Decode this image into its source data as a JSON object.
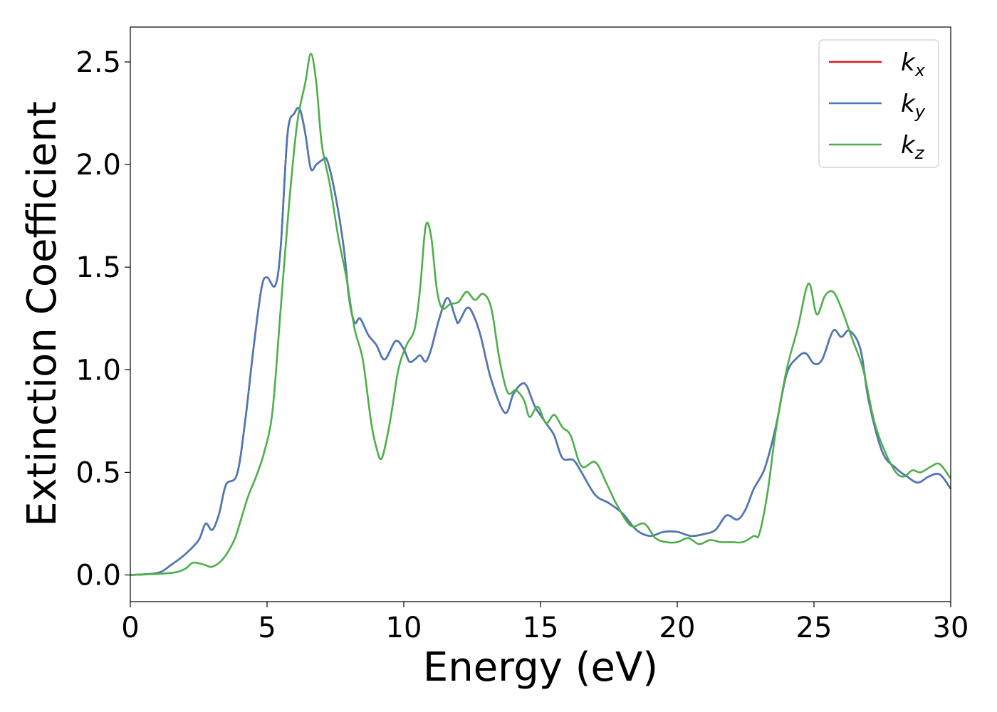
{
  "chart_data": {
    "type": "line",
    "xlabel": "Energy (eV)",
    "ylabel": "Extinction Coefficient",
    "xlim": [
      0,
      30
    ],
    "ylim": [
      -0.13,
      2.67
    ],
    "xticks": [
      "0",
      "5",
      "10",
      "15",
      "20",
      "25",
      "30"
    ],
    "yticks": [
      "0.0",
      "0.5",
      "1.0",
      "1.5",
      "2.0",
      "2.5"
    ],
    "grid": false,
    "legend_position": "top-right",
    "series": [
      {
        "name": "k_x",
        "legend_base": "k",
        "legend_sub": "x",
        "color": "#e41a1c",
        "points": [
          [
            0,
            0
          ],
          [
            1,
            0.01
          ],
          [
            1.5,
            0.05
          ],
          [
            2,
            0.1
          ],
          [
            2.5,
            0.17
          ],
          [
            2.75,
            0.25
          ],
          [
            3,
            0.22
          ],
          [
            3.25,
            0.3
          ],
          [
            3.5,
            0.44
          ],
          [
            3.9,
            0.49
          ],
          [
            4.2,
            0.75
          ],
          [
            4.5,
            1.1
          ],
          [
            4.8,
            1.4
          ],
          [
            5.0,
            1.45
          ],
          [
            5.3,
            1.41
          ],
          [
            5.5,
            1.6
          ],
          [
            5.75,
            2.15
          ],
          [
            6.0,
            2.25
          ],
          [
            6.2,
            2.27
          ],
          [
            6.4,
            2.15
          ],
          [
            6.6,
            1.98
          ],
          [
            6.8,
            2.0
          ],
          [
            7.0,
            2.02
          ],
          [
            7.2,
            2.02
          ],
          [
            7.5,
            1.85
          ],
          [
            7.8,
            1.6
          ],
          [
            8.0,
            1.35
          ],
          [
            8.2,
            1.23
          ],
          [
            8.4,
            1.25
          ],
          [
            8.7,
            1.17
          ],
          [
            9.0,
            1.12
          ],
          [
            9.3,
            1.05
          ],
          [
            9.7,
            1.14
          ],
          [
            10.0,
            1.1
          ],
          [
            10.2,
            1.04
          ],
          [
            10.4,
            1.05
          ],
          [
            10.6,
            1.07
          ],
          [
            10.8,
            1.04
          ],
          [
            11.0,
            1.1
          ],
          [
            11.3,
            1.25
          ],
          [
            11.6,
            1.35
          ],
          [
            11.9,
            1.25
          ],
          [
            12.0,
            1.23
          ],
          [
            12.3,
            1.3
          ],
          [
            12.5,
            1.28
          ],
          [
            12.8,
            1.17
          ],
          [
            13.2,
            0.95
          ],
          [
            13.7,
            0.79
          ],
          [
            14.0,
            0.88
          ],
          [
            14.3,
            0.93
          ],
          [
            14.5,
            0.92
          ],
          [
            14.8,
            0.82
          ],
          [
            15.2,
            0.74
          ],
          [
            15.5,
            0.68
          ],
          [
            15.8,
            0.57
          ],
          [
            16.2,
            0.56
          ],
          [
            16.5,
            0.5
          ],
          [
            17.0,
            0.39
          ],
          [
            17.5,
            0.35
          ],
          [
            18.0,
            0.3
          ],
          [
            18.5,
            0.22
          ],
          [
            19.0,
            0.19
          ],
          [
            19.5,
            0.21
          ],
          [
            20.0,
            0.21
          ],
          [
            20.5,
            0.19
          ],
          [
            21.0,
            0.2
          ],
          [
            21.4,
            0.22
          ],
          [
            21.8,
            0.29
          ],
          [
            22.2,
            0.27
          ],
          [
            22.5,
            0.32
          ],
          [
            22.8,
            0.42
          ],
          [
            23.2,
            0.52
          ],
          [
            23.6,
            0.72
          ],
          [
            24.0,
            0.98
          ],
          [
            24.4,
            1.06
          ],
          [
            24.7,
            1.08
          ],
          [
            25.0,
            1.03
          ],
          [
            25.3,
            1.05
          ],
          [
            25.7,
            1.19
          ],
          [
            26.0,
            1.16
          ],
          [
            26.3,
            1.19
          ],
          [
            26.7,
            1.1
          ],
          [
            27.0,
            0.85
          ],
          [
            27.5,
            0.6
          ],
          [
            28.0,
            0.52
          ],
          [
            28.4,
            0.48
          ],
          [
            28.8,
            0.45
          ],
          [
            29.2,
            0.48
          ],
          [
            29.6,
            0.49
          ],
          [
            30.0,
            0.42
          ]
        ]
      },
      {
        "name": "k_y",
        "legend_base": "k",
        "legend_sub": "y",
        "color": "#4a79b8",
        "points": [
          [
            0,
            0
          ],
          [
            1,
            0.01
          ],
          [
            1.5,
            0.05
          ],
          [
            2,
            0.1
          ],
          [
            2.5,
            0.17
          ],
          [
            2.75,
            0.25
          ],
          [
            3,
            0.22
          ],
          [
            3.25,
            0.3
          ],
          [
            3.5,
            0.44
          ],
          [
            3.9,
            0.49
          ],
          [
            4.2,
            0.75
          ],
          [
            4.5,
            1.1
          ],
          [
            4.8,
            1.4
          ],
          [
            5.0,
            1.45
          ],
          [
            5.3,
            1.41
          ],
          [
            5.5,
            1.6
          ],
          [
            5.75,
            2.15
          ],
          [
            6.0,
            2.25
          ],
          [
            6.2,
            2.27
          ],
          [
            6.4,
            2.15
          ],
          [
            6.6,
            1.98
          ],
          [
            6.8,
            2.0
          ],
          [
            7.0,
            2.02
          ],
          [
            7.2,
            2.02
          ],
          [
            7.5,
            1.85
          ],
          [
            7.8,
            1.6
          ],
          [
            8.0,
            1.35
          ],
          [
            8.2,
            1.23
          ],
          [
            8.4,
            1.25
          ],
          [
            8.7,
            1.17
          ],
          [
            9.0,
            1.12
          ],
          [
            9.3,
            1.05
          ],
          [
            9.7,
            1.14
          ],
          [
            10.0,
            1.1
          ],
          [
            10.2,
            1.04
          ],
          [
            10.4,
            1.05
          ],
          [
            10.6,
            1.07
          ],
          [
            10.8,
            1.04
          ],
          [
            11.0,
            1.1
          ],
          [
            11.3,
            1.25
          ],
          [
            11.6,
            1.35
          ],
          [
            11.9,
            1.25
          ],
          [
            12.0,
            1.23
          ],
          [
            12.3,
            1.3
          ],
          [
            12.5,
            1.28
          ],
          [
            12.8,
            1.17
          ],
          [
            13.2,
            0.95
          ],
          [
            13.7,
            0.79
          ],
          [
            14.0,
            0.88
          ],
          [
            14.3,
            0.93
          ],
          [
            14.5,
            0.92
          ],
          [
            14.8,
            0.82
          ],
          [
            15.2,
            0.74
          ],
          [
            15.5,
            0.68
          ],
          [
            15.8,
            0.57
          ],
          [
            16.2,
            0.56
          ],
          [
            16.5,
            0.5
          ],
          [
            17.0,
            0.39
          ],
          [
            17.5,
            0.35
          ],
          [
            18.0,
            0.3
          ],
          [
            18.5,
            0.22
          ],
          [
            19.0,
            0.19
          ],
          [
            19.5,
            0.21
          ],
          [
            20.0,
            0.21
          ],
          [
            20.5,
            0.19
          ],
          [
            21.0,
            0.2
          ],
          [
            21.4,
            0.22
          ],
          [
            21.8,
            0.29
          ],
          [
            22.2,
            0.27
          ],
          [
            22.5,
            0.32
          ],
          [
            22.8,
            0.42
          ],
          [
            23.2,
            0.52
          ],
          [
            23.6,
            0.72
          ],
          [
            24.0,
            0.98
          ],
          [
            24.4,
            1.06
          ],
          [
            24.7,
            1.08
          ],
          [
            25.0,
            1.03
          ],
          [
            25.3,
            1.05
          ],
          [
            25.7,
            1.19
          ],
          [
            26.0,
            1.16
          ],
          [
            26.3,
            1.19
          ],
          [
            26.7,
            1.1
          ],
          [
            27.0,
            0.85
          ],
          [
            27.5,
            0.6
          ],
          [
            28.0,
            0.52
          ],
          [
            28.4,
            0.48
          ],
          [
            28.8,
            0.45
          ],
          [
            29.2,
            0.48
          ],
          [
            29.6,
            0.49
          ],
          [
            30.0,
            0.42
          ]
        ]
      },
      {
        "name": "k_z",
        "legend_base": "k",
        "legend_sub": "z",
        "color": "#4daf4a",
        "points": [
          [
            0,
            0
          ],
          [
            1.5,
            0.01
          ],
          [
            2,
            0.03
          ],
          [
            2.3,
            0.06
          ],
          [
            2.7,
            0.05
          ],
          [
            3,
            0.04
          ],
          [
            3.4,
            0.08
          ],
          [
            3.8,
            0.17
          ],
          [
            4.0,
            0.25
          ],
          [
            4.3,
            0.38
          ],
          [
            4.6,
            0.48
          ],
          [
            4.9,
            0.6
          ],
          [
            5.2,
            0.8
          ],
          [
            5.5,
            1.3
          ],
          [
            5.8,
            1.8
          ],
          [
            6.1,
            2.2
          ],
          [
            6.4,
            2.4
          ],
          [
            6.6,
            2.54
          ],
          [
            6.8,
            2.4
          ],
          [
            7.0,
            2.1
          ],
          [
            7.3,
            1.9
          ],
          [
            7.6,
            1.65
          ],
          [
            7.9,
            1.45
          ],
          [
            8.2,
            1.2
          ],
          [
            8.5,
            1.05
          ],
          [
            8.8,
            0.75
          ],
          [
            9.0,
            0.62
          ],
          [
            9.2,
            0.57
          ],
          [
            9.5,
            0.75
          ],
          [
            9.8,
            1.0
          ],
          [
            10.1,
            1.12
          ],
          [
            10.4,
            1.2
          ],
          [
            10.6,
            1.4
          ],
          [
            10.8,
            1.7
          ],
          [
            11.0,
            1.65
          ],
          [
            11.2,
            1.4
          ],
          [
            11.4,
            1.3
          ],
          [
            11.7,
            1.32
          ],
          [
            12.0,
            1.33
          ],
          [
            12.3,
            1.38
          ],
          [
            12.6,
            1.34
          ],
          [
            12.9,
            1.37
          ],
          [
            13.2,
            1.3
          ],
          [
            13.5,
            1.05
          ],
          [
            13.8,
            0.89
          ],
          [
            14.1,
            0.9
          ],
          [
            14.4,
            0.85
          ],
          [
            14.6,
            0.77
          ],
          [
            14.9,
            0.82
          ],
          [
            15.2,
            0.74
          ],
          [
            15.5,
            0.78
          ],
          [
            15.8,
            0.72
          ],
          [
            16.1,
            0.68
          ],
          [
            16.5,
            0.53
          ],
          [
            17.0,
            0.55
          ],
          [
            17.4,
            0.45
          ],
          [
            17.8,
            0.34
          ],
          [
            18.3,
            0.24
          ],
          [
            18.8,
            0.25
          ],
          [
            19.2,
            0.18
          ],
          [
            19.6,
            0.16
          ],
          [
            20.0,
            0.16
          ],
          [
            20.4,
            0.18
          ],
          [
            20.8,
            0.15
          ],
          [
            21.2,
            0.17
          ],
          [
            21.6,
            0.16
          ],
          [
            22.0,
            0.16
          ],
          [
            22.4,
            0.16
          ],
          [
            22.8,
            0.19
          ],
          [
            23.0,
            0.2
          ],
          [
            23.3,
            0.4
          ],
          [
            23.6,
            0.7
          ],
          [
            24.0,
            1.0
          ],
          [
            24.4,
            1.2
          ],
          [
            24.8,
            1.42
          ],
          [
            25.1,
            1.27
          ],
          [
            25.4,
            1.36
          ],
          [
            25.7,
            1.38
          ],
          [
            26.0,
            1.3
          ],
          [
            26.4,
            1.15
          ],
          [
            26.8,
            1.0
          ],
          [
            27.2,
            0.75
          ],
          [
            27.6,
            0.6
          ],
          [
            28.0,
            0.5
          ],
          [
            28.3,
            0.48
          ],
          [
            28.6,
            0.51
          ],
          [
            28.9,
            0.5
          ],
          [
            29.3,
            0.53
          ],
          [
            29.6,
            0.54
          ],
          [
            30.0,
            0.47
          ]
        ]
      }
    ]
  }
}
